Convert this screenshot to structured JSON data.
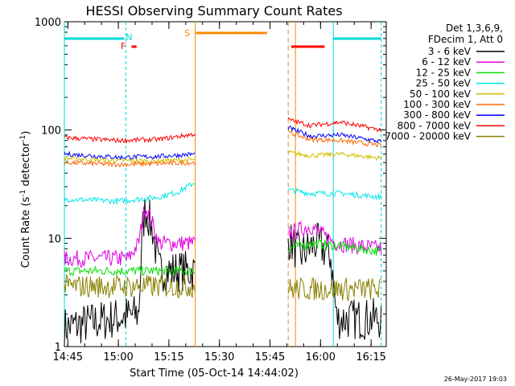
{
  "chart_data": {
    "type": "line",
    "title": "HESSI Observing Summary Count Rates",
    "xlabel": "Start Time (05-Oct-14 14:44:02)",
    "ylabel_parts": [
      "Count Rate (s",
      "-1",
      " detector",
      "-1",
      ")"
    ],
    "yscale": "log",
    "ylim": [
      1,
      1000
    ],
    "xlim_minutes": [
      14.733,
      16.325
    ],
    "x_ticks": [
      {
        "label": "14:45",
        "h": 14.75
      },
      {
        "label": "15:00",
        "h": 15.0
      },
      {
        "label": "15:15",
        "h": 15.25
      },
      {
        "label": "15:30",
        "h": 15.5
      },
      {
        "label": "15:45",
        "h": 15.75
      },
      {
        "label": "16:00",
        "h": 16.0
      },
      {
        "label": "16:15",
        "h": 16.25
      }
    ],
    "y_ticks": [
      {
        "label": "1",
        "v": 1
      },
      {
        "label": "10",
        "v": 10
      },
      {
        "label": "100",
        "v": 100
      },
      {
        "label": "1000",
        "v": 1000
      }
    ],
    "legend_header": [
      "Det 1,3,6,9,",
      "FDecim 1, Att 0"
    ],
    "series": [
      {
        "name": "3 - 6 keV",
        "color": "#000000",
        "seg1": [
          [
            14.733,
            1.5
          ],
          [
            15.1,
            2
          ],
          [
            15.12,
            12
          ],
          [
            15.133,
            19
          ],
          [
            15.17,
            12
          ],
          [
            15.2,
            5
          ],
          [
            15.38,
            5
          ]
        ],
        "seg2": [
          [
            15.84,
            10
          ],
          [
            15.9,
            7
          ],
          [
            15.98,
            9
          ],
          [
            16.05,
            7
          ],
          [
            16.08,
            1.8
          ],
          [
            16.3,
            1.8
          ]
        ]
      },
      {
        "name": "6 - 12 keV",
        "color": "#e000e0",
        "seg1": [
          [
            14.733,
            6.5
          ],
          [
            15.05,
            6.5
          ],
          [
            15.1,
            9
          ],
          [
            15.133,
            20
          ],
          [
            15.167,
            14
          ],
          [
            15.2,
            9
          ],
          [
            15.38,
            9
          ]
        ],
        "seg2": [
          [
            15.84,
            11
          ],
          [
            15.9,
            12
          ],
          [
            15.95,
            13
          ],
          [
            16.0,
            11
          ],
          [
            16.08,
            9
          ],
          [
            16.3,
            8
          ]
        ]
      },
      {
        "name": "12 - 25 keV",
        "color": "#00e000",
        "seg1": [
          [
            14.733,
            5
          ],
          [
            15.38,
            5
          ]
        ],
        "seg2": [
          [
            15.84,
            8
          ],
          [
            15.95,
            9
          ],
          [
            16.1,
            8.5
          ],
          [
            16.3,
            7.5
          ]
        ]
      },
      {
        "name": "25 - 50 keV",
        "color": "#00e8e8",
        "seg1": [
          [
            14.733,
            23
          ],
          [
            15.0,
            22
          ],
          [
            15.1,
            23
          ],
          [
            15.2,
            24
          ],
          [
            15.3,
            27
          ],
          [
            15.38,
            33
          ]
        ],
        "seg2": [
          [
            15.84,
            28
          ],
          [
            15.95,
            26
          ],
          [
            16.1,
            26
          ],
          [
            16.3,
            24
          ]
        ]
      },
      {
        "name": "50 - 100 keV",
        "color": "#d0c000",
        "seg1": [
          [
            14.733,
            55
          ],
          [
            15.0,
            52
          ],
          [
            15.2,
            52
          ],
          [
            15.38,
            53
          ]
        ],
        "seg2": [
          [
            15.84,
            62
          ],
          [
            15.95,
            58
          ],
          [
            16.1,
            60
          ],
          [
            16.3,
            55
          ]
        ]
      },
      {
        "name": "100 - 300 keV",
        "color": "#ff6600",
        "seg1": [
          [
            14.733,
            50
          ],
          [
            15.0,
            48
          ],
          [
            15.2,
            49
          ],
          [
            15.38,
            50
          ]
        ],
        "seg2": [
          [
            15.84,
            95
          ],
          [
            15.95,
            82
          ],
          [
            16.1,
            80
          ],
          [
            16.3,
            72
          ]
        ]
      },
      {
        "name": "300 - 800 keV",
        "color": "#0000ff",
        "seg1": [
          [
            14.733,
            60
          ],
          [
            15.0,
            56
          ],
          [
            15.2,
            57
          ],
          [
            15.38,
            60
          ]
        ],
        "seg2": [
          [
            15.84,
            105
          ],
          [
            15.95,
            88
          ],
          [
            16.1,
            90
          ],
          [
            16.3,
            78
          ]
        ]
      },
      {
        "name": "800 - 7000 keV",
        "color": "#ff0000",
        "seg1": [
          [
            14.733,
            85
          ],
          [
            15.0,
            80
          ],
          [
            15.2,
            82
          ],
          [
            15.38,
            92
          ]
        ],
        "seg2": [
          [
            15.84,
            125
          ],
          [
            15.95,
            110
          ],
          [
            16.1,
            118
          ],
          [
            16.3,
            100
          ]
        ]
      },
      {
        "name": "7000 - 20000 keV",
        "color": "#8b8000",
        "seg1": [
          [
            14.733,
            3.6
          ],
          [
            15.38,
            3.6
          ]
        ],
        "seg2": [
          [
            15.84,
            3.4
          ],
          [
            16.1,
            3.4
          ],
          [
            16.3,
            3.4
          ]
        ]
      }
    ],
    "markers": [
      {
        "label": "N",
        "color": "#00d8d8",
        "h": 15.037
      },
      {
        "label": "F",
        "color": "#ff0000",
        "h": 15.04
      },
      {
        "label": "S",
        "color": "#ff8800",
        "h": 15.38
      }
    ],
    "footer": "26-May-2017 19:03"
  }
}
